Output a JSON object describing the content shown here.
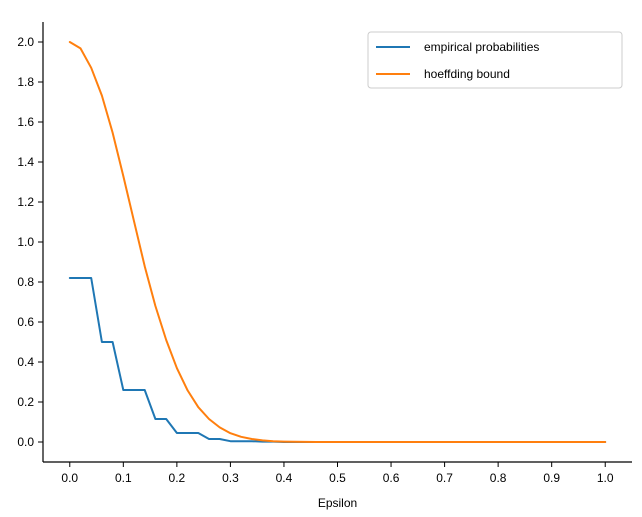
{
  "chart_data": {
    "type": "line",
    "title": "",
    "xlabel": "Epsilon",
    "ylabel": "",
    "xlim": [
      -0.05,
      1.05
    ],
    "ylim": [
      -0.1,
      2.1
    ],
    "xticks": [
      "0.0",
      "0.1",
      "0.2",
      "0.3",
      "0.4",
      "0.5",
      "0.6",
      "0.7",
      "0.8",
      "0.9",
      "1.0"
    ],
    "yticks": [
      "0.0",
      "0.2",
      "0.4",
      "0.6",
      "0.8",
      "1.0",
      "1.2",
      "1.4",
      "1.6",
      "1.8",
      "2.0"
    ],
    "grid": false,
    "legend_position": "top-right",
    "series": [
      {
        "name": "empirical probabilities",
        "color": "#1f77b4",
        "x": [
          0.0,
          0.04,
          0.06,
          0.08,
          0.1,
          0.14,
          0.16,
          0.18,
          0.2,
          0.24,
          0.26,
          0.28,
          0.3,
          0.34,
          0.36,
          0.38,
          0.4,
          0.5,
          0.6,
          0.7,
          0.8,
          0.9,
          1.0
        ],
        "y": [
          0.82,
          0.82,
          0.5,
          0.5,
          0.26,
          0.26,
          0.115,
          0.115,
          0.045,
          0.045,
          0.015,
          0.015,
          0.004,
          0.004,
          0.002,
          0.002,
          0.0,
          0.0,
          0.0,
          0.0,
          0.0,
          0.0,
          0.0
        ]
      },
      {
        "name": "hoeffding bound",
        "color": "#ff7f0e",
        "x": [
          0.0,
          0.02,
          0.04,
          0.06,
          0.08,
          0.1,
          0.12,
          0.14,
          0.16,
          0.18,
          0.2,
          0.22,
          0.24,
          0.26,
          0.28,
          0.3,
          0.32,
          0.34,
          0.36,
          0.38,
          0.4,
          0.42,
          0.44,
          0.46,
          0.5,
          0.6,
          0.7,
          0.8,
          0.9,
          1.0
        ],
        "y": [
          2.0,
          1.968,
          1.871,
          1.732,
          1.547,
          1.33,
          1.104,
          0.879,
          0.68,
          0.51,
          0.369,
          0.258,
          0.174,
          0.115,
          0.073,
          0.044,
          0.026,
          0.015,
          0.008,
          0.004,
          0.002,
          0.001,
          0.0005,
          0.0002,
          0.0,
          0.0,
          0.0,
          0.0,
          0.0,
          0.0
        ]
      }
    ]
  }
}
